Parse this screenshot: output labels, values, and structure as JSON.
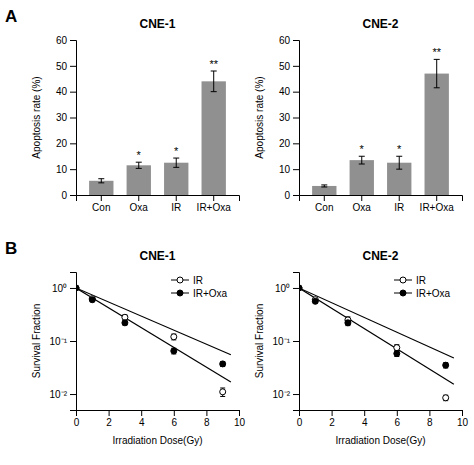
{
  "chart_data": [
    {
      "type": "bar",
      "panel_label": "A",
      "title": "CNE-1",
      "ylabel": "Apoptosis rate (%)",
      "categories": [
        "Con",
        "Oxa",
        "IR",
        "IR+Oxa"
      ],
      "values": [
        5.5,
        11.5,
        12.5,
        44.0
      ],
      "errors": [
        0.8,
        1.2,
        1.8,
        4.0
      ],
      "annotations": [
        null,
        "*",
        "*",
        "**"
      ],
      "color": "#909090",
      "ylim": [
        0,
        60
      ],
      "yticks": [
        0,
        10,
        20,
        30,
        40,
        50,
        60
      ]
    },
    {
      "type": "bar",
      "title": "CNE-2",
      "ylabel": "Apoptosis rate (%)",
      "categories": [
        "Con",
        "Oxa",
        "IR",
        "IR+Oxa"
      ],
      "values": [
        3.5,
        13.5,
        12.5,
        47.0
      ],
      "errors": [
        0.4,
        1.5,
        2.5,
        5.5
      ],
      "annotations": [
        null,
        "*",
        "*",
        "**"
      ],
      "color": "#909090",
      "ylim": [
        0,
        60
      ],
      "yticks": [
        0,
        10,
        20,
        30,
        40,
        50,
        60
      ]
    },
    {
      "type": "scatter",
      "panel_label": "B",
      "title": "CNE-1",
      "xlabel": "Irradiation Dose(Gy)",
      "ylabel": "Survival Fraction",
      "log": "y",
      "legend": "upper right",
      "xlim": [
        0,
        10
      ],
      "xticks": [
        0,
        2,
        4,
        6,
        8,
        10
      ],
      "ylim": [
        0.005,
        2.0
      ],
      "yticks": [
        {
          "value": 0.01,
          "label": "10⁻²"
        },
        {
          "value": 0.1,
          "label": "10⁻¹"
        },
        {
          "value": 1,
          "label": "10⁰"
        }
      ],
      "series": [
        {
          "type": "line",
          "color": "#000000",
          "x": [
            0,
            9.5
          ],
          "values": [
            1.0,
            0.05516
          ]
        },
        {
          "type": "line",
          "color": "#000000",
          "x": [
            0,
            9.5
          ],
          "values": [
            1.0,
            0.016823
          ]
        },
        {
          "name": "IR",
          "type": "scatter",
          "marker": "open-circle",
          "color": "#000000",
          "x": [
            0,
            1,
            3,
            6,
            9
          ],
          "values": [
            1.0,
            0.63,
            0.28,
            0.12,
            0.011
          ],
          "errors": [
            0.0,
            0.05,
            0.03,
            0.015,
            0.002
          ]
        },
        {
          "name": "IR+Oxa",
          "type": "scatter",
          "marker": "circle",
          "color": "#000000",
          "x": [
            0,
            1,
            3,
            6,
            9
          ],
          "values": [
            1.0,
            0.6,
            0.22,
            0.065,
            0.037
          ],
          "errors": [
            0.0,
            0.05,
            0.02,
            0.008,
            0.004
          ]
        }
      ]
    },
    {
      "type": "scatter",
      "title": "CNE-2",
      "xlabel": "Irradiation Dose(Gy)",
      "ylabel": "Survival Fraction",
      "log": "y",
      "legend": "upper right",
      "xlim": [
        0,
        10
      ],
      "xticks": [
        0,
        2,
        4,
        6,
        8,
        10
      ],
      "ylim": [
        0.005,
        2.0
      ],
      "yticks": [
        {
          "value": 0.01,
          "label": "10⁻²"
        },
        {
          "value": 0.1,
          "label": "10⁻¹"
        },
        {
          "value": 1,
          "label": "10⁰"
        }
      ],
      "series": [
        {
          "type": "line",
          "color": "#000000",
          "x": [
            0,
            9.5
          ],
          "values": [
            1.0,
            0.047835
          ]
        },
        {
          "type": "line",
          "color": "#000000",
          "x": [
            0,
            9.5
          ],
          "values": [
            1.0,
            0.015298
          ]
        },
        {
          "name": "IR",
          "type": "scatter",
          "marker": "open-circle",
          "color": "#000000",
          "x": [
            0,
            1,
            3,
            6,
            9
          ],
          "values": [
            1.0,
            0.6,
            0.25,
            0.075,
            0.0085
          ],
          "errors": [
            0.0,
            0.04,
            0.035,
            0.01,
            0.001
          ]
        },
        {
          "name": "IR+Oxa",
          "type": "scatter",
          "marker": "circle",
          "color": "#000000",
          "x": [
            0,
            1,
            3,
            6,
            9
          ],
          "values": [
            1.0,
            0.56,
            0.22,
            0.058,
            0.035
          ],
          "errors": [
            0.0,
            0.04,
            0.025,
            0.007,
            0.004
          ]
        }
      ]
    }
  ]
}
